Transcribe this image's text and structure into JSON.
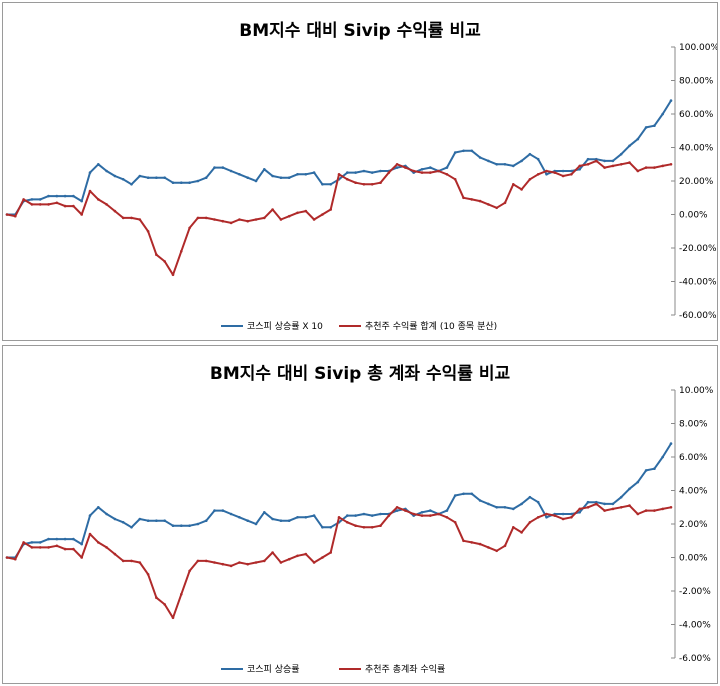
{
  "colors": {
    "blue": "#2e6ca4",
    "red": "#b02a2a",
    "axis": "#888888"
  },
  "chart_data": [
    {
      "type": "line",
      "title": "BM지수 대비 Sivip 수익률 비교",
      "yticks": [
        "100.00%",
        "80.00%",
        "60.00%",
        "40.00%",
        "20.00%",
        "0.00%",
        "-20.00%",
        "-40.00%",
        "-60.00%"
      ],
      "ylim": [
        -60,
        100
      ],
      "ylabel_position": "right",
      "legend_position": "bottom",
      "series": [
        {
          "name": "코스피 상승률 X 10",
          "color": "#2e6ca4",
          "x": [
            0,
            1,
            2,
            3,
            4,
            5,
            6,
            7,
            8,
            9,
            10,
            11,
            12,
            13,
            14,
            15,
            16,
            17,
            18,
            19,
            20,
            21,
            22,
            23,
            24,
            25,
            26,
            27,
            28,
            29,
            30,
            31,
            32,
            33,
            34,
            35,
            36,
            37,
            38,
            39,
            40,
            41,
            42,
            43,
            44,
            45,
            46,
            47,
            48,
            49,
            50,
            51,
            52,
            53,
            54,
            55,
            56,
            57,
            58,
            59,
            60,
            61,
            62,
            63,
            64,
            65,
            66,
            67,
            68,
            69,
            70,
            71,
            72,
            73,
            74,
            75,
            76,
            77,
            78,
            79,
            80
          ],
          "values": [
            0,
            0,
            8,
            9,
            9,
            11,
            11,
            11,
            11,
            8,
            25,
            30,
            26,
            23,
            21,
            18,
            23,
            22,
            22,
            22,
            19,
            19,
            19,
            20,
            22,
            28,
            28,
            26,
            24,
            22,
            20,
            27,
            23,
            22,
            22,
            24,
            24,
            25,
            18,
            18,
            21,
            25,
            25,
            26,
            25,
            26,
            26,
            28,
            29,
            25,
            27,
            28,
            26,
            28,
            37,
            38,
            38,
            34,
            32,
            30,
            30,
            29,
            32,
            36,
            33,
            24,
            26,
            26,
            26,
            27,
            33,
            33,
            32,
            32,
            36,
            41,
            45,
            52,
            53,
            60,
            68
          ]
        },
        {
          "name": "추천주 수익률 합계 (10 종목 분산)",
          "color": "#b02a2a",
          "x": [
            0,
            1,
            2,
            3,
            4,
            5,
            6,
            7,
            8,
            9,
            10,
            11,
            12,
            13,
            14,
            15,
            16,
            17,
            18,
            19,
            20,
            21,
            22,
            23,
            24,
            25,
            26,
            27,
            28,
            29,
            30,
            31,
            32,
            33,
            34,
            35,
            36,
            37,
            38,
            39,
            40,
            41,
            42,
            43,
            44,
            45,
            46,
            47,
            48,
            49,
            50,
            51,
            52,
            53,
            54,
            55,
            56,
            57,
            58,
            59,
            60,
            61,
            62,
            63,
            64,
            65,
            66,
            67,
            68,
            69,
            70,
            71,
            72,
            73,
            74,
            75,
            76,
            77,
            78,
            79,
            80
          ],
          "values": [
            0,
            -1,
            9,
            6,
            6,
            6,
            7,
            5,
            5,
            0,
            14,
            9,
            6,
            2,
            -2,
            -2,
            -3,
            -10,
            -24,
            -28,
            -36,
            -22,
            -8,
            -2,
            -2,
            -3,
            -4,
            -5,
            -3,
            -4,
            -3,
            -2,
            3,
            -3,
            -1,
            1,
            2,
            -3,
            0,
            3,
            24,
            21,
            19,
            18,
            18,
            19,
            25,
            30,
            28,
            26,
            25,
            25,
            26,
            24,
            21,
            10,
            9,
            8,
            6,
            4,
            7,
            18,
            15,
            21,
            24,
            26,
            25,
            23,
            24,
            29,
            30,
            32,
            28,
            29,
            30,
            31,
            26,
            28,
            28,
            29,
            30
          ]
        }
      ]
    },
    {
      "type": "line",
      "title": "BM지수 대비 Sivip 총 계좌 수익률 비교",
      "yticks": [
        "10.00%",
        "8.00%",
        "6.00%",
        "4.00%",
        "2.00%",
        "0.00%",
        "-2.00%",
        "-4.00%",
        "-6.00%"
      ],
      "ylim": [
        -6,
        10
      ],
      "ylabel_position": "right",
      "legend_position": "bottom",
      "series": [
        {
          "name": "코스피 상승률",
          "color": "#2e6ca4",
          "x": [
            0,
            1,
            2,
            3,
            4,
            5,
            6,
            7,
            8,
            9,
            10,
            11,
            12,
            13,
            14,
            15,
            16,
            17,
            18,
            19,
            20,
            21,
            22,
            23,
            24,
            25,
            26,
            27,
            28,
            29,
            30,
            31,
            32,
            33,
            34,
            35,
            36,
            37,
            38,
            39,
            40,
            41,
            42,
            43,
            44,
            45,
            46,
            47,
            48,
            49,
            50,
            51,
            52,
            53,
            54,
            55,
            56,
            57,
            58,
            59,
            60,
            61,
            62,
            63,
            64,
            65,
            66,
            67,
            68,
            69,
            70,
            71,
            72,
            73,
            74,
            75,
            76,
            77,
            78,
            79,
            80
          ],
          "values": [
            0,
            0,
            0.8,
            0.9,
            0.9,
            1.1,
            1.1,
            1.1,
            1.1,
            0.8,
            2.5,
            3.0,
            2.6,
            2.3,
            2.1,
            1.8,
            2.3,
            2.2,
            2.2,
            2.2,
            1.9,
            1.9,
            1.9,
            2.0,
            2.2,
            2.8,
            2.8,
            2.6,
            2.4,
            2.2,
            2.0,
            2.7,
            2.3,
            2.2,
            2.2,
            2.4,
            2.4,
            2.5,
            1.8,
            1.8,
            2.1,
            2.5,
            2.5,
            2.6,
            2.5,
            2.6,
            2.6,
            2.8,
            2.9,
            2.5,
            2.7,
            2.8,
            2.6,
            2.8,
            3.7,
            3.8,
            3.8,
            3.4,
            3.2,
            3.0,
            3.0,
            2.9,
            3.2,
            3.6,
            3.3,
            2.4,
            2.6,
            2.6,
            2.6,
            2.7,
            3.3,
            3.3,
            3.2,
            3.2,
            3.6,
            4.1,
            4.5,
            5.2,
            5.3,
            6.0,
            6.8
          ]
        },
        {
          "name": "추천주 총계좌 수익률",
          "color": "#b02a2a",
          "x": [
            0,
            1,
            2,
            3,
            4,
            5,
            6,
            7,
            8,
            9,
            10,
            11,
            12,
            13,
            14,
            15,
            16,
            17,
            18,
            19,
            20,
            21,
            22,
            23,
            24,
            25,
            26,
            27,
            28,
            29,
            30,
            31,
            32,
            33,
            34,
            35,
            36,
            37,
            38,
            39,
            40,
            41,
            42,
            43,
            44,
            45,
            46,
            47,
            48,
            49,
            50,
            51,
            52,
            53,
            54,
            55,
            56,
            57,
            58,
            59,
            60,
            61,
            62,
            63,
            64,
            65,
            66,
            67,
            68,
            69,
            70,
            71,
            72,
            73,
            74,
            75,
            76,
            77,
            78,
            79,
            80
          ],
          "values": [
            0,
            -0.1,
            0.9,
            0.6,
            0.6,
            0.6,
            0.7,
            0.5,
            0.5,
            0,
            1.4,
            0.9,
            0.6,
            0.2,
            -0.2,
            -0.2,
            -0.3,
            -1.0,
            -2.4,
            -2.8,
            -3.6,
            -2.2,
            -0.8,
            -0.2,
            -0.2,
            -0.3,
            -0.4,
            -0.5,
            -0.3,
            -0.4,
            -0.3,
            -0.2,
            0.3,
            -0.3,
            -0.1,
            0.1,
            0.2,
            -0.3,
            0,
            0.3,
            2.4,
            2.1,
            1.9,
            1.8,
            1.8,
            1.9,
            2.5,
            3.0,
            2.8,
            2.6,
            2.5,
            2.5,
            2.6,
            2.4,
            2.1,
            1.0,
            0.9,
            0.8,
            0.6,
            0.4,
            0.7,
            1.8,
            1.5,
            2.1,
            2.4,
            2.6,
            2.5,
            2.3,
            2.4,
            2.9,
            3.0,
            3.2,
            2.8,
            2.9,
            3.0,
            3.1,
            2.6,
            2.8,
            2.8,
            2.9,
            3.0
          ]
        }
      ]
    }
  ]
}
